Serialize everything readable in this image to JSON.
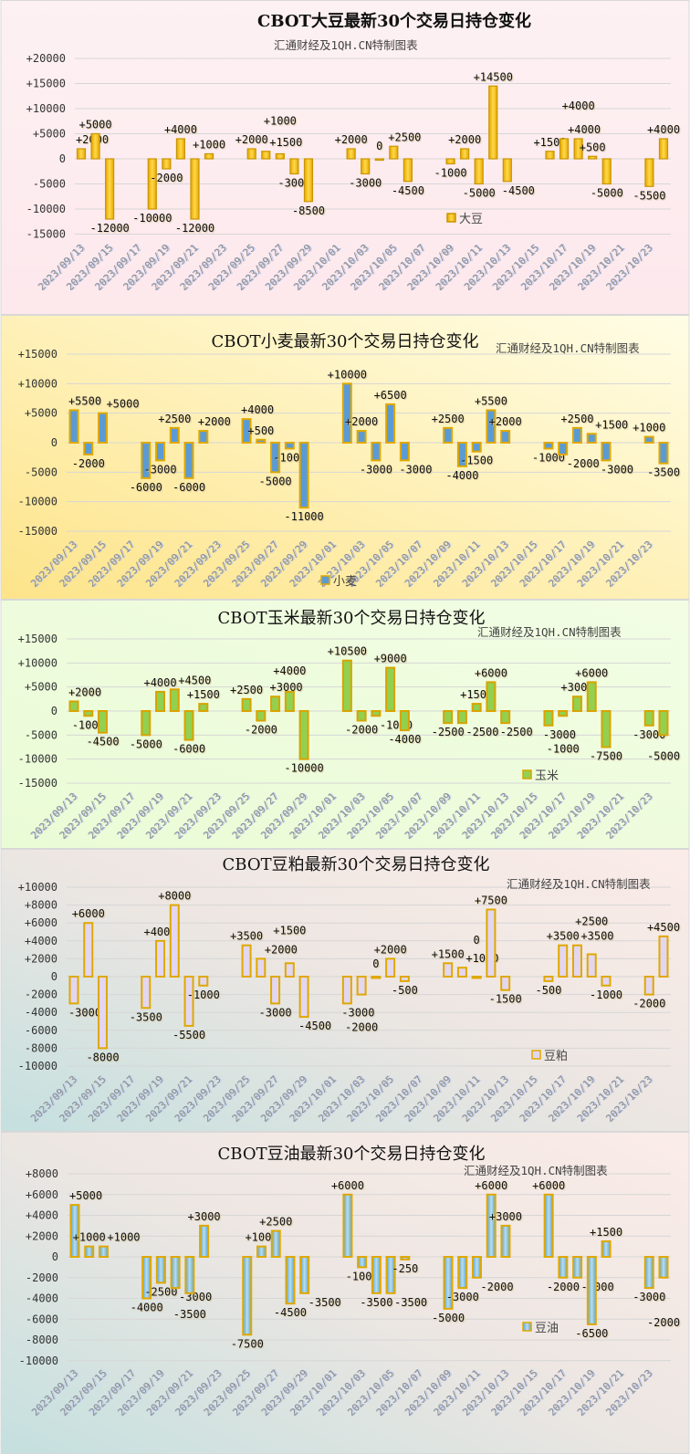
{
  "subtitle": "汇通财经及1QH.CN特制图表",
  "chart_data": [
    {
      "type": "bar",
      "title": "CBOT大豆最新30个交易日持仓变化",
      "legend": "大豆",
      "legend_position": "bottom-right",
      "grid": true,
      "colors": {
        "fill_top": "#ffd84a",
        "fill_bottom": "#e6a800",
        "border": "#c99500",
        "background": "#fdeef0"
      },
      "ylim": [
        -15000,
        20000
      ],
      "yticks": [
        "+20000",
        "+15000",
        "+10000",
        "+5000",
        "0",
        "-5000",
        "-10000",
        "-15000"
      ],
      "xticks": [
        "2023/09/13",
        "2023/09/15",
        "2023/09/17",
        "2023/09/19",
        "2023/09/21",
        "2023/09/23",
        "2023/09/25",
        "2023/09/27",
        "2023/09/29",
        "2023/10/01",
        "2023/10/03",
        "2023/10/05",
        "2023/10/07",
        "2023/10/09",
        "2023/10/11",
        "2023/10/13",
        "2023/10/15",
        "2023/10/17",
        "2023/10/19",
        "2023/10/21",
        "2023/10/23"
      ],
      "dates": [
        "2023/09/13",
        "2023/09/14",
        "2023/09/15",
        "2023/09/18",
        "2023/09/19",
        "2023/09/20",
        "2023/09/21",
        "2023/09/22",
        "2023/09/25",
        "2023/09/26",
        "2023/09/27",
        "2023/09/28",
        "2023/09/29",
        "2023/10/02",
        "2023/10/03",
        "2023/10/04",
        "2023/10/05",
        "2023/10/06",
        "2023/10/09",
        "2023/10/10",
        "2023/10/11",
        "2023/10/12",
        "2023/10/13",
        "2023/10/16",
        "2023/10/17",
        "2023/10/18",
        "2023/10/19",
        "2023/10/20",
        "2023/10/23",
        "2023/10/24"
      ],
      "values": [
        2000,
        5000,
        -12000,
        -10000,
        -2000,
        4000,
        -12000,
        1000,
        2000,
        1500,
        1000,
        -3000,
        -8500,
        2000,
        -3000,
        0,
        2500,
        -4500,
        -1000,
        2000,
        -5000,
        14500,
        -4500,
        1500,
        4000,
        4000,
        500,
        -5000,
        -5500,
        4000
      ],
      "labels": [
        "+2000",
        "+5000",
        "-12000",
        "-10000",
        "-2000",
        "+4000",
        "-12000",
        "+1000",
        "+2000",
        "+1500",
        "+1000",
        "-3000",
        "-8500",
        "+2000",
        "-3000",
        "0",
        "+2500",
        "-4500",
        "-1000",
        "+2000",
        "-5000",
        "+14500",
        "-4500",
        "+1500",
        "+4000",
        "+4000",
        "+500",
        "-5000",
        "-5500",
        "+4000"
      ]
    },
    {
      "type": "bar",
      "title": "CBOT小麦最新30个交易日持仓变化",
      "legend": "小麦",
      "legend_position": "bottom-center",
      "grid": true,
      "colors": {
        "fill_top": "#5b9bd5",
        "fill_bottom": "#5b9bd5",
        "border": "#e0a800",
        "background": "#fff8c8"
      },
      "ylim": [
        -15000,
        15000
      ],
      "yticks": [
        "+15000",
        "+10000",
        "+5000",
        "0",
        "-5000",
        "-10000",
        "-15000"
      ],
      "xticks": [
        "2023/09/13",
        "2023/09/15",
        "2023/09/17",
        "2023/09/19",
        "2023/09/21",
        "2023/09/23",
        "2023/09/25",
        "2023/09/27",
        "2023/09/29",
        "2023/10/01",
        "2023/10/03",
        "2023/10/05",
        "2023/10/07",
        "2023/10/09",
        "2023/10/11",
        "2023/10/13",
        "2023/10/15",
        "2023/10/17",
        "2023/10/19",
        "2023/10/21",
        "2023/10/23"
      ],
      "dates": [
        "2023/09/13",
        "2023/09/14",
        "2023/09/15",
        "2023/09/18",
        "2023/09/19",
        "2023/09/20",
        "2023/09/21",
        "2023/09/22",
        "2023/09/25",
        "2023/09/26",
        "2023/09/27",
        "2023/09/28",
        "2023/09/29",
        "2023/10/02",
        "2023/10/03",
        "2023/10/04",
        "2023/10/05",
        "2023/10/06",
        "2023/10/09",
        "2023/10/10",
        "2023/10/11",
        "2023/10/12",
        "2023/10/13",
        "2023/10/16",
        "2023/10/17",
        "2023/10/18",
        "2023/10/19",
        "2023/10/20",
        "2023/10/23",
        "2023/10/24"
      ],
      "values": [
        5500,
        -2000,
        5000,
        -6000,
        -3000,
        2500,
        -6000,
        2000,
        4000,
        500,
        -5000,
        -1000,
        -11000,
        10000,
        2000,
        -3000,
        6500,
        -3000,
        2500,
        -4000,
        -1500,
        5500,
        2000,
        -1000,
        -2000,
        2500,
        1500,
        -3000,
        1000,
        -3500
      ],
      "labels": [
        "+5500",
        "-2000",
        "+5000",
        "-6000",
        "-3000",
        "+2500",
        "-6000",
        "+2000",
        "+4000",
        "+500",
        "-5000",
        "-1000",
        "-11000",
        "+10000",
        "+2000",
        "-3000",
        "+6500",
        "-3000",
        "+2500",
        "-4000",
        "-1500",
        "+5500",
        "+2000",
        "-1000",
        "-2000",
        "+2500",
        "+1500",
        "-3000",
        "+1000",
        "-3500"
      ]
    },
    {
      "type": "bar",
      "title": "CBOT玉米最新30个交易日持仓变化",
      "legend": "玉米",
      "legend_position": "bottom-right",
      "grid": true,
      "colors": {
        "fill_top": "#92d050",
        "fill_bottom": "#92d050",
        "border": "#d9a300",
        "background": "#effcdc"
      },
      "ylim": [
        -15000,
        15000
      ],
      "yticks": [
        "+15000",
        "+10000",
        "+5000",
        "0",
        "-5000",
        "-10000",
        "-15000"
      ],
      "xticks": [
        "2023/09/13",
        "2023/09/15",
        "2023/09/17",
        "2023/09/19",
        "2023/09/21",
        "2023/09/23",
        "2023/09/25",
        "2023/09/27",
        "2023/09/29",
        "2023/10/01",
        "2023/10/03",
        "2023/10/05",
        "2023/10/07",
        "2023/10/09",
        "2023/10/11",
        "2023/10/13",
        "2023/10/15",
        "2023/10/17",
        "2023/10/19",
        "2023/10/21",
        "2023/10/23"
      ],
      "dates": [
        "2023/09/13",
        "2023/09/14",
        "2023/09/15",
        "2023/09/18",
        "2023/09/19",
        "2023/09/20",
        "2023/09/21",
        "2023/09/22",
        "2023/09/25",
        "2023/09/26",
        "2023/09/27",
        "2023/09/28",
        "2023/09/29",
        "2023/10/02",
        "2023/10/03",
        "2023/10/04",
        "2023/10/05",
        "2023/10/06",
        "2023/10/09",
        "2023/10/10",
        "2023/10/11",
        "2023/10/12",
        "2023/10/13",
        "2023/10/16",
        "2023/10/17",
        "2023/10/18",
        "2023/10/19",
        "2023/10/20",
        "2023/10/23",
        "2023/10/24"
      ],
      "values": [
        2000,
        -1000,
        -4500,
        -5000,
        4000,
        4500,
        -6000,
        1500,
        2500,
        -2000,
        3000,
        4000,
        -10000,
        10500,
        -2000,
        -1000,
        9000,
        -4000,
        -2500,
        -2500,
        1500,
        6000,
        -2500,
        -3000,
        -1000,
        3000,
        6000,
        -7500,
        -3000,
        -5000
      ],
      "labels": [
        "+2000",
        "-1000",
        "-4500",
        "-5000",
        "+4000",
        "+4500",
        "-6000",
        "+1500",
        "+2500",
        "-2000",
        "+3000",
        "+4000",
        "-10000",
        "+10500",
        "-2000",
        "-1000",
        "+9000",
        "-4000",
        "-2500",
        "-2500",
        "+1500",
        "+6000",
        "-2500",
        "-3000",
        "-1000",
        "+3000",
        "+6000",
        "-7500",
        "-3000",
        "-5000"
      ]
    },
    {
      "type": "bar",
      "title": "CBOT豆粕最新30个交易日持仓变化",
      "legend": "豆粕",
      "legend_position": "bottom-right",
      "grid": true,
      "colors": {
        "fill_top": "#e2d6f0",
        "fill_bottom": "#e2d6f0",
        "border": "#e0a800",
        "background": "#f6ebe8"
      },
      "ylim": [
        -10000,
        10000
      ],
      "yticks": [
        "+10000",
        "+8000",
        "+6000",
        "+4000",
        "+2000",
        "0",
        "-2000",
        "-4000",
        "-6000",
        "-8000",
        "-10000"
      ],
      "xticks": [
        "2023/09/13",
        "2023/09/15",
        "2023/09/17",
        "2023/09/19",
        "2023/09/21",
        "2023/09/23",
        "2023/09/25",
        "2023/09/27",
        "2023/09/29",
        "2023/10/01",
        "2023/10/03",
        "2023/10/05",
        "2023/10/07",
        "2023/10/09",
        "2023/10/11",
        "2023/10/13",
        "2023/10/15",
        "2023/10/17",
        "2023/10/19",
        "2023/10/21",
        "2023/10/23"
      ],
      "dates": [
        "2023/09/13",
        "2023/09/14",
        "2023/09/15",
        "2023/09/18",
        "2023/09/19",
        "2023/09/20",
        "2023/09/21",
        "2023/09/22",
        "2023/09/25",
        "2023/09/26",
        "2023/09/27",
        "2023/09/28",
        "2023/09/29",
        "2023/10/02",
        "2023/10/03",
        "2023/10/04",
        "2023/10/05",
        "2023/10/06",
        "2023/10/09",
        "2023/10/10",
        "2023/10/11",
        "2023/10/12",
        "2023/10/13",
        "2023/10/16",
        "2023/10/17",
        "2023/10/18",
        "2023/10/19",
        "2023/10/20",
        "2023/10/23",
        "2023/10/24"
      ],
      "values": [
        -3000,
        6000,
        -8000,
        -3500,
        4000,
        8000,
        -5500,
        -1000,
        3500,
        2000,
        -3000,
        1500,
        -4500,
        -3000,
        -2000,
        0,
        2000,
        -500,
        1500,
        1000,
        0,
        7500,
        -1500,
        -500,
        3500,
        3500,
        2500,
        -1000,
        -2000,
        4500
      ],
      "labels": [
        "-3000",
        "+6000",
        "-8000",
        "-3500",
        "+4000",
        "+8000",
        "-5500",
        "-1000",
        "+3500",
        "+2000",
        "-3000",
        "+1500",
        "-4500",
        "-3000",
        "-2000",
        "0",
        "+2000",
        "-500",
        "+1500",
        "+1000",
        "0",
        "+7500",
        "-1500",
        "-500",
        "+3500",
        "+3500",
        "+2500",
        "-1000",
        "-2000",
        "+4500"
      ]
    },
    {
      "type": "bar",
      "title": "CBOT豆油最新30个交易日持仓变化",
      "legend": "豆油",
      "legend_position": "bottom-right",
      "grid": true,
      "colors": {
        "fill_top": "#b8dcee",
        "fill_bottom": "#5aa6cf",
        "border": "#e0a800",
        "background": "#f4e8e6"
      },
      "ylim": [
        -10000,
        8000
      ],
      "yticks": [
        "+8000",
        "+6000",
        "+4000",
        "+2000",
        "0",
        "-2000",
        "-4000",
        "-6000",
        "-8000",
        "-10000"
      ],
      "xticks": [
        "2023/09/13",
        "2023/09/15",
        "2023/09/17",
        "2023/09/19",
        "2023/09/21",
        "2023/09/23",
        "2023/09/25",
        "2023/09/27",
        "2023/09/29",
        "2023/10/01",
        "2023/10/03",
        "2023/10/05",
        "2023/10/07",
        "2023/10/09",
        "2023/10/11",
        "2023/10/13",
        "2023/10/15",
        "2023/10/17",
        "2023/10/19",
        "2023/10/21",
        "2023/10/23"
      ],
      "dates": [
        "2023/09/13",
        "2023/09/14",
        "2023/09/15",
        "2023/09/18",
        "2023/09/19",
        "2023/09/20",
        "2023/09/21",
        "2023/09/22",
        "2023/09/25",
        "2023/09/26",
        "2023/09/27",
        "2023/09/28",
        "2023/09/29",
        "2023/10/02",
        "2023/10/03",
        "2023/10/04",
        "2023/10/05",
        "2023/10/06",
        "2023/10/09",
        "2023/10/10",
        "2023/10/11",
        "2023/10/12",
        "2023/10/13",
        "2023/10/16",
        "2023/10/17",
        "2023/10/18",
        "2023/10/19",
        "2023/10/20",
        "2023/10/23",
        "2023/10/24"
      ],
      "values": [
        5000,
        1000,
        1000,
        -4000,
        -2500,
        -3000,
        -3500,
        3000,
        -7500,
        1000,
        2500,
        -4500,
        -3500,
        6000,
        -1000,
        -3500,
        -3500,
        -250,
        -5000,
        -3000,
        -2000,
        6000,
        3000,
        6000,
        -2000,
        -2000,
        -6500,
        1500,
        -3000,
        -2000
      ],
      "labels": [
        "+5000",
        "+1000",
        "+1000",
        "-4000",
        "-2500",
        "-3000",
        "-3500",
        "+3000",
        "-7500",
        "+1000",
        "+2500",
        "-4500",
        "-3500",
        "+6000",
        "-1000",
        "-3500",
        "-3500",
        "-250",
        "-5000",
        "-3000",
        "-2000",
        "+6000",
        "+3000",
        "+6000",
        "-2000",
        "-2000",
        "-6500",
        "+1500",
        "-3000",
        "-2000"
      ]
    }
  ]
}
